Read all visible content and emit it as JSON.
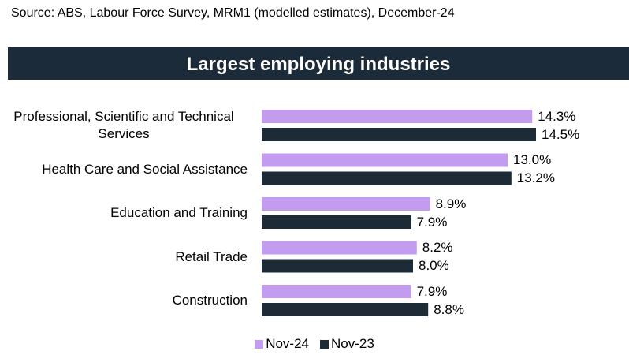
{
  "chart_data": {
    "type": "bar",
    "orientation": "horizontal",
    "source": "Source: ABS, Labour Force Survey, MRM1 (modelled estimates), December-24",
    "title": "Largest employing industries",
    "categories": [
      "Professional, Scientific and Technical Services",
      "Health Care and Social Assistance",
      "Education and Training",
      "Retail Trade",
      "Construction"
    ],
    "series": [
      {
        "name": "Nov-24",
        "color": "#c39bef",
        "values": [
          14.3,
          13.0,
          8.9,
          8.2,
          7.9
        ],
        "value_labels": [
          "14.3%",
          "13.0%",
          "8.9%",
          "8.2%",
          "7.9%"
        ]
      },
      {
        "name": "Nov-23",
        "color": "#1c2b36",
        "values": [
          14.5,
          13.2,
          7.9,
          8.0,
          8.8
        ],
        "value_labels": [
          "14.5%",
          "13.2%",
          "7.9%",
          "8.0%",
          "8.8%"
        ]
      }
    ],
    "legend": "bottom"
  }
}
